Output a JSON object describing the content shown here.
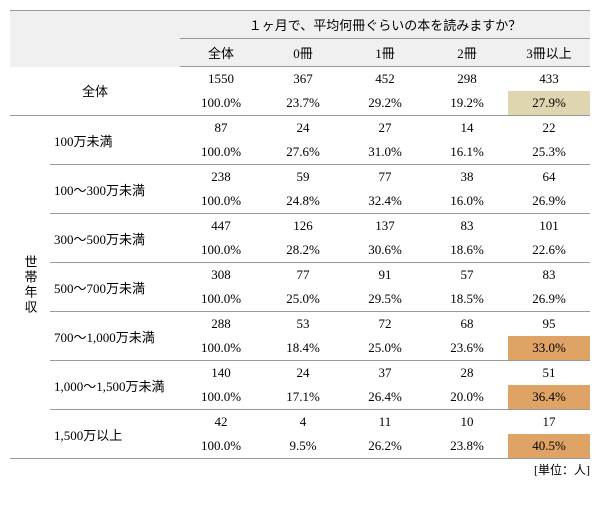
{
  "header": {
    "question": "１ヶ月で、平均何冊ぐらいの本を読みますか？",
    "cols": [
      "全体",
      "0冊",
      "1冊",
      "2冊",
      "3冊以上"
    ]
  },
  "total": {
    "label": "全体",
    "counts": [
      "1550",
      "367",
      "452",
      "298",
      "433"
    ],
    "pcts": [
      "100.0%",
      "23.7%",
      "29.2%",
      "19.2%",
      "27.9%"
    ],
    "highlight": [
      null,
      null,
      null,
      null,
      "tan"
    ]
  },
  "groupLabel": "世帯年収",
  "rows": [
    {
      "label": "100万未満",
      "counts": [
        "87",
        "24",
        "27",
        "14",
        "22"
      ],
      "pcts": [
        "100.0%",
        "27.6%",
        "31.0%",
        "16.1%",
        "25.3%"
      ],
      "highlight": [
        null,
        null,
        null,
        null,
        null
      ]
    },
    {
      "label": "100～300万未満",
      "counts": [
        "238",
        "59",
        "77",
        "38",
        "64"
      ],
      "pcts": [
        "100.0%",
        "24.8%",
        "32.4%",
        "16.0%",
        "26.9%"
      ],
      "highlight": [
        null,
        null,
        null,
        null,
        null
      ]
    },
    {
      "label": "300～500万未満",
      "counts": [
        "447",
        "126",
        "137",
        "83",
        "101"
      ],
      "pcts": [
        "100.0%",
        "28.2%",
        "30.6%",
        "18.6%",
        "22.6%"
      ],
      "highlight": [
        null,
        null,
        null,
        null,
        null
      ]
    },
    {
      "label": "500～700万未満",
      "counts": [
        "308",
        "77",
        "91",
        "57",
        "83"
      ],
      "pcts": [
        "100.0%",
        "25.0%",
        "29.5%",
        "18.5%",
        "26.9%"
      ],
      "highlight": [
        null,
        null,
        null,
        null,
        null
      ]
    },
    {
      "label": "700～1,000万未満",
      "counts": [
        "288",
        "53",
        "72",
        "68",
        "95"
      ],
      "pcts": [
        "100.0%",
        "18.4%",
        "25.0%",
        "23.6%",
        "33.0%"
      ],
      "highlight": [
        null,
        null,
        null,
        null,
        "orange"
      ]
    },
    {
      "label": "1,000～1,500万未満",
      "counts": [
        "140",
        "24",
        "37",
        "28",
        "51"
      ],
      "pcts": [
        "100.0%",
        "17.1%",
        "26.4%",
        "20.0%",
        "36.4%"
      ],
      "highlight": [
        null,
        null,
        null,
        null,
        "orange"
      ]
    },
    {
      "label": "1,500万以上",
      "counts": [
        "42",
        "4",
        "11",
        "10",
        "17"
      ],
      "pcts": [
        "100.0%",
        "9.5%",
        "26.2%",
        "23.8%",
        "40.5%"
      ],
      "highlight": [
        null,
        null,
        null,
        null,
        "orange"
      ]
    }
  ],
  "unit": "[単位：人]",
  "colors": {
    "tan": "#dfd5b1",
    "orange": "#e0a366",
    "hdr": "#f0f0f0"
  }
}
